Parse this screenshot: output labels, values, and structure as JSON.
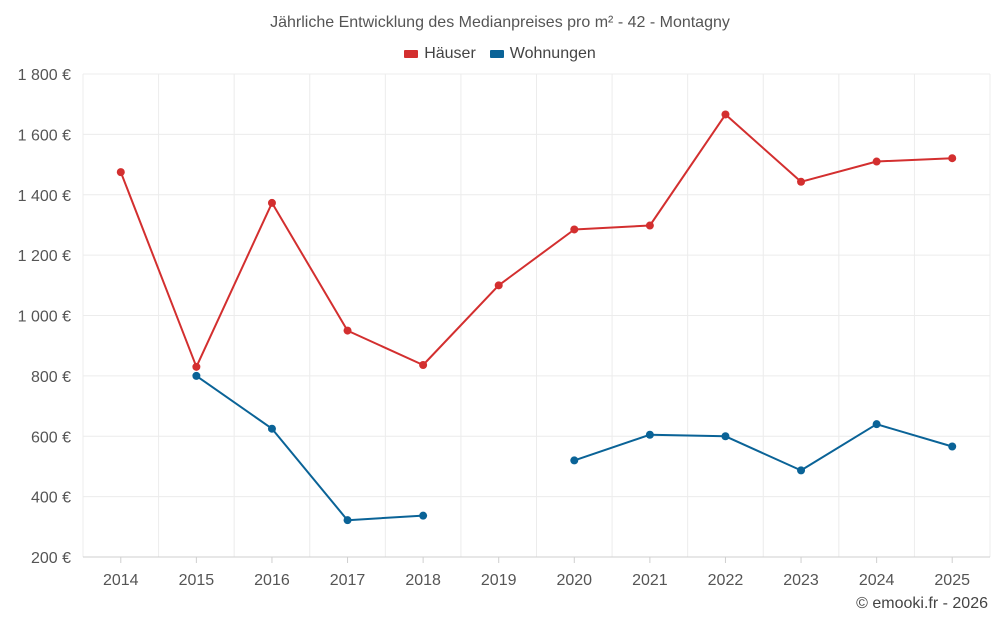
{
  "chart_data": {
    "type": "line",
    "title": "Jährliche Entwicklung des Medianpreises pro m² - 42 - Montagny",
    "categories": [
      "2014",
      "2015",
      "2016",
      "2017",
      "2018",
      "2019",
      "2020",
      "2021",
      "2022",
      "2023",
      "2024",
      "2025"
    ],
    "ylim": [
      200,
      1800
    ],
    "yticks": [
      200,
      400,
      600,
      800,
      1000,
      1200,
      1400,
      1600,
      1800
    ],
    "ytick_labels": [
      "200 €",
      "400 €",
      "600 €",
      "800 €",
      "1 000 €",
      "1 200 €",
      "1 400 €",
      "1 600 €",
      "1 800 €"
    ],
    "grid": true,
    "legend_position": "top-center",
    "series": [
      {
        "name": "Häuser",
        "color": "#d32f2f",
        "values": [
          1475,
          830,
          1373,
          950,
          836,
          1100,
          1285,
          1298,
          1666,
          1443,
          1510,
          1521
        ]
      },
      {
        "name": "Wohnungen",
        "color": "#0a6397",
        "values": [
          null,
          800,
          625,
          322,
          337,
          null,
          520,
          605,
          600,
          487,
          640,
          566
        ]
      }
    ]
  },
  "credit": "© emooki.fr - 2026"
}
